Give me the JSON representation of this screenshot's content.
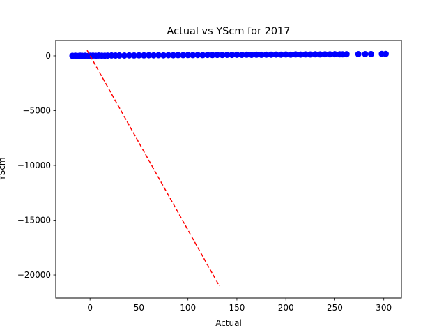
{
  "chart_data": {
    "type": "scatter",
    "title": "Actual vs YScm for 2017",
    "xlabel": "Actual",
    "ylabel": "YScm",
    "xlim": [
      -35,
      318
    ],
    "ylim": [
      -22100,
      1400
    ],
    "x_ticks": [
      0,
      50,
      100,
      150,
      200,
      250,
      300
    ],
    "y_ticks": [
      0,
      -5000,
      -10000,
      -15000,
      -20000
    ],
    "grid": false,
    "legend": "none",
    "series": [
      {
        "kind": "scatter",
        "color": "#0000ff",
        "x": [
          -18,
          -15,
          -12,
          -10,
          -8,
          -5,
          -2,
          0,
          3,
          6,
          9,
          12,
          15,
          18,
          22,
          26,
          30,
          35,
          40,
          45,
          50,
          55,
          60,
          65,
          70,
          75,
          80,
          85,
          90,
          95,
          100,
          105,
          110,
          115,
          120,
          125,
          130,
          135,
          140,
          145,
          150,
          155,
          160,
          165,
          170,
          175,
          180,
          185,
          190,
          195,
          200,
          205,
          210,
          215,
          220,
          225,
          230,
          235,
          240,
          245,
          250,
          255,
          258,
          262,
          274,
          281,
          287,
          298,
          302
        ],
        "y": [
          5,
          12,
          -8,
          20,
          3,
          15,
          -5,
          10,
          25,
          8,
          30,
          18,
          14,
          22,
          35,
          28,
          40,
          32,
          45,
          38,
          50,
          42,
          55,
          48,
          60,
          52,
          65,
          58,
          70,
          62,
          75,
          66,
          80,
          72,
          85,
          76,
          90,
          82,
          95,
          86,
          100,
          92,
          105,
          96,
          110,
          102,
          115,
          106,
          120,
          112,
          125,
          116,
          130,
          122,
          135,
          126,
          140,
          132,
          145,
          136,
          150,
          140,
          138,
          152,
          160,
          155,
          165,
          175,
          180
        ]
      },
      {
        "kind": "line",
        "style": "dashed",
        "color": "#ff0000",
        "x": [
          -3,
          132
        ],
        "y": [
          500,
          -21000
        ]
      }
    ]
  }
}
